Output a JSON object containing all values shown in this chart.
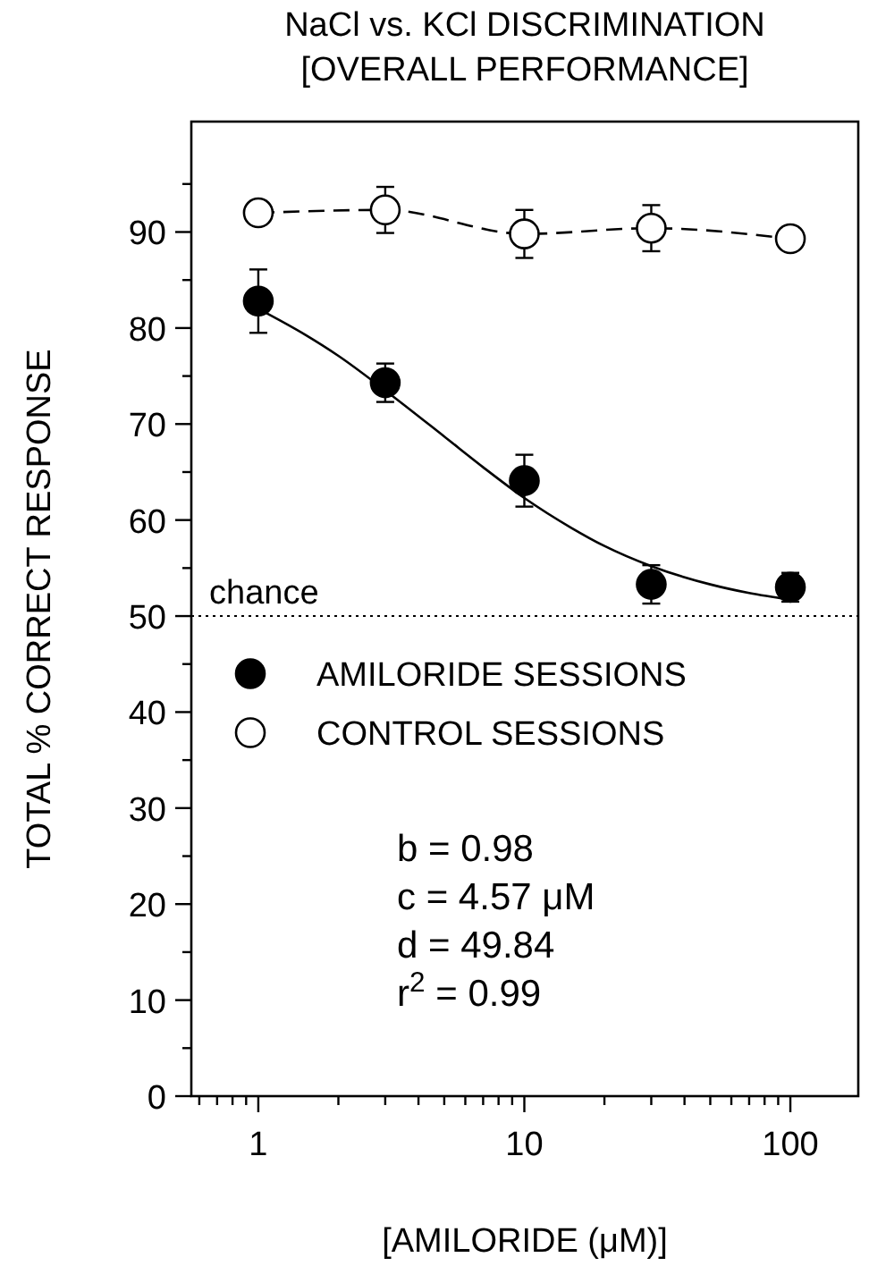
{
  "chart_data": {
    "type": "scatter",
    "title": "NaCl vs. KCl DISCRIMINATION",
    "subtitle": "[OVERALL PERFORMANCE]",
    "xlabel": "[AMILORIDE (μM)]",
    "ylabel": "TOTAL % CORRECT RESPONSE",
    "log": "x",
    "xlim": [
      0.56,
      180
    ],
    "ylim": [
      0,
      101.5
    ],
    "xticks": [
      {
        "value": 0.6,
        "label": null
      },
      {
        "value": 0.7,
        "label": null
      },
      {
        "value": 0.8,
        "label": null
      },
      {
        "value": 0.9,
        "label": null
      },
      1,
      {
        "value": 2,
        "label": null
      },
      {
        "value": 3,
        "label": null
      },
      {
        "value": 4,
        "label": null
      },
      {
        "value": 5,
        "label": null
      },
      {
        "value": 6,
        "label": null
      },
      {
        "value": 7,
        "label": null
      },
      {
        "value": 8,
        "label": null
      },
      {
        "value": 9,
        "label": null
      },
      10,
      {
        "value": 20,
        "label": null
      },
      {
        "value": 30,
        "label": null
      },
      {
        "value": 40,
        "label": null
      },
      {
        "value": 50,
        "label": null
      },
      {
        "value": 60,
        "label": null
      },
      {
        "value": 70,
        "label": null
      },
      {
        "value": 80,
        "label": null
      },
      {
        "value": 90,
        "label": null
      },
      100
    ],
    "yticks": [
      0,
      {
        "value": 5,
        "label": null
      },
      10,
      {
        "value": 15,
        "label": null
      },
      20,
      {
        "value": 25,
        "label": null
      },
      30,
      {
        "value": 35,
        "label": null
      },
      40,
      {
        "value": 45,
        "label": null
      },
      50,
      {
        "value": 55,
        "label": null
      },
      60,
      {
        "value": 65,
        "label": null
      },
      70,
      {
        "value": 75,
        "label": null
      },
      80,
      {
        "value": 85,
        "label": null
      },
      90,
      {
        "value": 95,
        "label": null
      }
    ],
    "grid": false,
    "legend": "left",
    "series": [
      {
        "type": "line",
        "color": "#000000",
        "marker": "none",
        "line_style": "solid",
        "x": [
          1,
          1.5,
          2,
          3,
          5,
          7,
          10,
          15,
          20,
          30,
          50,
          70,
          100
        ],
        "values": [
          82.0,
          79.3,
          77.1,
          73.5,
          68.7,
          65.5,
          62.3,
          59.2,
          57.3,
          55.2,
          53.3,
          52.4,
          51.7
        ]
      },
      {
        "type": "line",
        "name": "CONTROL SESSIONS",
        "color": "#000000",
        "marker": "circle",
        "line_style": "dashed",
        "x": [
          1,
          3,
          10,
          30,
          100
        ],
        "values": [
          92.0,
          92.3,
          89.8,
          90.4,
          89.3
        ],
        "errors": [
          1.2,
          2.4,
          2.5,
          2.4,
          null
        ]
      },
      {
        "name": "AMILORIDE SESSIONS",
        "color": "#000000",
        "marker": "circle",
        "x": [
          1,
          3,
          10,
          30,
          100
        ],
        "values": [
          82.8,
          74.3,
          64.1,
          53.3,
          53.0
        ],
        "errors": [
          3.3,
          2.0,
          2.7,
          2.0,
          1.5
        ]
      }
    ],
    "ref_lines": [
      {
        "axis": "y",
        "value": 50,
        "label": "chance",
        "color": "#000000",
        "line_style": "dotted"
      }
    ],
    "annotations": [
      "b = 0.98",
      "c = 4.57 μM",
      "d = 49.84",
      "r$^{2}$ = 0.99"
    ]
  }
}
